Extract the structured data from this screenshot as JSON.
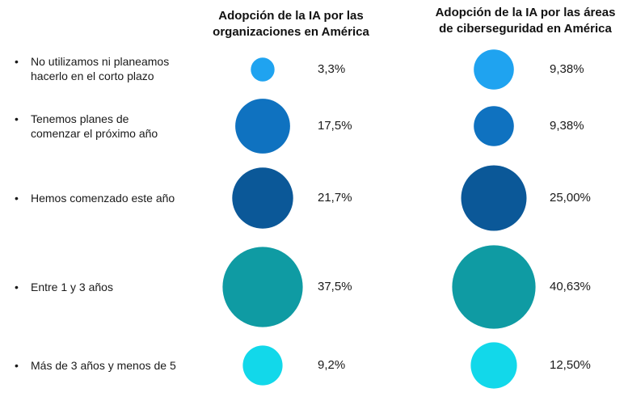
{
  "chart_data": {
    "type": "bubble",
    "categories": [
      {
        "line1": "No utilizamos ni planeamos",
        "line2": "hacerlo en el corto plazo"
      },
      {
        "line1": "Tenemos planes de",
        "line2": "comenzar el próximo año"
      },
      {
        "line1": "Hemos comenzado este año",
        "line2": ""
      },
      {
        "line1": "Entre 1 y 3 años",
        "line2": ""
      },
      {
        "line1": "Más de 3 años y menos de 5",
        "line2": ""
      }
    ],
    "colors": [
      "#1fa3f0",
      "#0f72c0",
      "#0b5898",
      "#0f9ba3",
      "#12d8ea"
    ],
    "series": [
      {
        "title_line1": "Adopción de la IA por las",
        "title_line2": "organizaciones en América",
        "values": [
          3.3,
          17.5,
          21.7,
          37.5,
          9.2
        ],
        "labels": [
          "3,3%",
          "17,5%",
          "21,7%",
          "37,5%",
          "9,2%"
        ]
      },
      {
        "title_line1": "Adopción de la IA por las áreas",
        "title_line2": "de ciberseguridad en América",
        "values": [
          9.38,
          9.38,
          25.0,
          40.63,
          12.5
        ],
        "labels": [
          "9,38%",
          "9,38%",
          "25,00%",
          "40,63%",
          "12,50%"
        ]
      }
    ]
  }
}
